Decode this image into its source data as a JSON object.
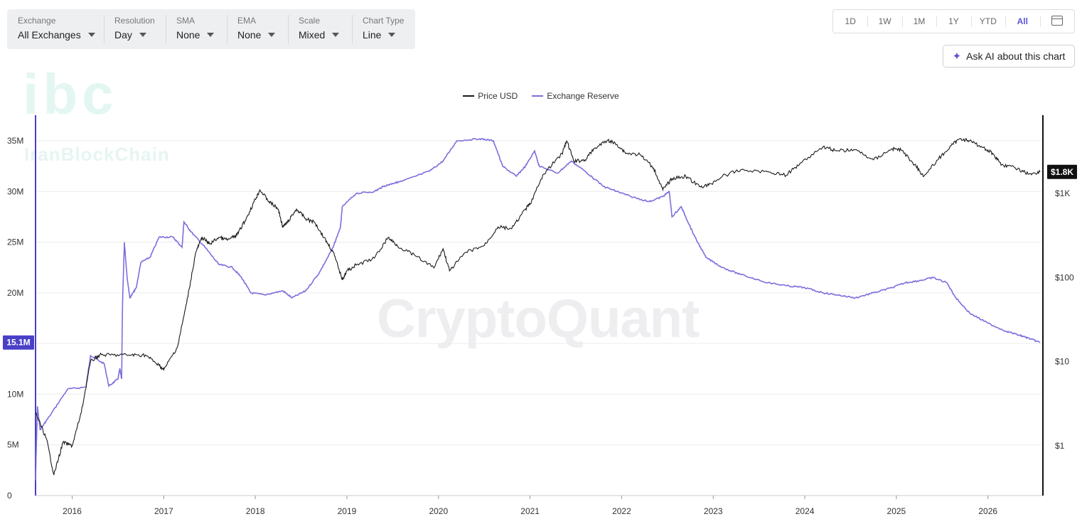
{
  "toolbar": {
    "exchange": {
      "label": "Exchange",
      "value": "All Exchanges"
    },
    "resolution": {
      "label": "Resolution",
      "value": "Day"
    },
    "sma": {
      "label": "SMA",
      "value": "None"
    },
    "ema": {
      "label": "EMA",
      "value": "None"
    },
    "scale": {
      "label": "Scale",
      "value": "Mixed"
    },
    "chart_type": {
      "label": "Chart Type",
      "value": "Line"
    }
  },
  "ranges": [
    "1D",
    "1W",
    "1M",
    "1Y",
    "YTD",
    "All"
  ],
  "active_range": "All",
  "ask_ai": "Ask AI about this chart",
  "watermarks": {
    "logo": "ibc",
    "logo_text": "IranBlockChain",
    "brand": "CryptoQuant"
  },
  "colors": {
    "price": "#1a1a1a",
    "reserve": "#7b6fdc",
    "badge_left": "#4a3fc7",
    "badge_right": "#111111",
    "accent": "#5b54d6"
  },
  "chart_data": {
    "type": "line",
    "legend": [
      "Price USD",
      "Exchange Reserve"
    ],
    "legend_position": "top-center",
    "x_ticks": [
      "2016",
      "2017",
      "2018",
      "2019",
      "2020",
      "2021",
      "2022",
      "2023",
      "2024",
      "2025",
      "2026"
    ],
    "x_range": [
      2015.6,
      2026.6
    ],
    "y_left": {
      "label": "",
      "ticks": [
        "0",
        "5M",
        "10M",
        "15M",
        "20M",
        "25M",
        "30M",
        "35M"
      ],
      "range": [
        0,
        35000000
      ],
      "current_label": "15.1M"
    },
    "y_right": {
      "label": "",
      "scale": "log",
      "ticks": [
        "$1",
        "$10",
        "$100",
        "$1K"
      ],
      "tick_values": [
        1,
        10,
        100,
        1000
      ],
      "current_label": "$1.8K"
    },
    "gridlines": "horizontal",
    "series": [
      {
        "name": "Exchange Reserve",
        "axis": "left",
        "points": [
          [
            2015.6,
            1500000.0
          ],
          [
            2015.62,
            8800000.0
          ],
          [
            2015.65,
            6500000.0
          ],
          [
            2015.75,
            7800000.0
          ],
          [
            2015.95,
            10500000.0
          ],
          [
            2016.15,
            10700000.0
          ],
          [
            2016.2,
            13800000.0
          ],
          [
            2016.35,
            13000000.0
          ],
          [
            2016.4,
            10800000.0
          ],
          [
            2016.5,
            11500000.0
          ],
          [
            2016.52,
            12500000.0
          ],
          [
            2016.54,
            11500000.0
          ],
          [
            2016.55,
            19000000.0
          ],
          [
            2016.57,
            25000000.0
          ],
          [
            2016.6,
            21500000.0
          ],
          [
            2016.63,
            19500000.0
          ],
          [
            2016.7,
            20500000.0
          ],
          [
            2016.75,
            23000000.0
          ],
          [
            2016.85,
            23500000.0
          ],
          [
            2016.95,
            25500000.0
          ],
          [
            2017.1,
            25500000.0
          ],
          [
            2017.2,
            24500000.0
          ],
          [
            2017.22,
            27000000.0
          ],
          [
            2017.3,
            26000000.0
          ],
          [
            2017.45,
            24500000.0
          ],
          [
            2017.6,
            22800000.0
          ],
          [
            2017.75,
            22500000.0
          ],
          [
            2017.85,
            21500000.0
          ],
          [
            2017.95,
            20000000.0
          ],
          [
            2018.1,
            19800000.0
          ],
          [
            2018.3,
            20200000.0
          ],
          [
            2018.4,
            19500000.0
          ],
          [
            2018.55,
            20200000.0
          ],
          [
            2018.7,
            22000000.0
          ],
          [
            2018.85,
            24500000.0
          ],
          [
            2018.93,
            26500000.0
          ],
          [
            2018.95,
            28500000.0
          ],
          [
            2019.1,
            29800000.0
          ],
          [
            2019.3,
            30000000.0
          ],
          [
            2019.4,
            30500000.0
          ],
          [
            2019.5,
            30800000.0
          ],
          [
            2019.6,
            31000000.0
          ],
          [
            2019.9,
            32000000.0
          ],
          [
            2020.05,
            33000000.0
          ],
          [
            2020.2,
            35000000.0
          ],
          [
            2020.45,
            35200000.0
          ],
          [
            2020.6,
            35000000.0
          ],
          [
            2020.7,
            32500000.0
          ],
          [
            2020.85,
            31500000.0
          ],
          [
            2020.95,
            32500000.0
          ],
          [
            2021.05,
            34000000.0
          ],
          [
            2021.1,
            32500000.0
          ],
          [
            2021.3,
            31800000.0
          ],
          [
            2021.45,
            33000000.0
          ],
          [
            2021.6,
            32000000.0
          ],
          [
            2021.8,
            30500000.0
          ],
          [
            2021.95,
            30000000.0
          ],
          [
            2022.1,
            29500000.0
          ],
          [
            2022.3,
            29000000.0
          ],
          [
            2022.45,
            29500000.0
          ],
          [
            2022.52,
            30000000.0
          ],
          [
            2022.55,
            27500000.0
          ],
          [
            2022.65,
            28500000.0
          ],
          [
            2022.7,
            27500000.0
          ],
          [
            2022.8,
            25500000.0
          ],
          [
            2022.92,
            23500000.0
          ],
          [
            2023.1,
            22500000.0
          ],
          [
            2023.3,
            21800000.0
          ],
          [
            2023.6,
            21000000.0
          ],
          [
            2023.8,
            20700000.0
          ],
          [
            2024.0,
            20500000.0
          ],
          [
            2024.2,
            20000000.0
          ],
          [
            2024.35,
            19800000.0
          ],
          [
            2024.55,
            19500000.0
          ],
          [
            2024.75,
            20000000.0
          ],
          [
            2024.95,
            20500000.0
          ],
          [
            2025.1,
            21000000.0
          ],
          [
            2025.25,
            21200000.0
          ],
          [
            2025.4,
            21500000.0
          ],
          [
            2025.55,
            21000000.0
          ],
          [
            2025.65,
            19500000.0
          ],
          [
            2025.8,
            18000000.0
          ],
          [
            2026.0,
            17000000.0
          ],
          [
            2026.2,
            16200000.0
          ],
          [
            2026.35,
            15800000.0
          ],
          [
            2026.45,
            15500000.0
          ],
          [
            2026.57,
            15100000.0
          ]
        ]
      },
      {
        "name": "Price USD",
        "axis": "right",
        "points": [
          [
            2015.6,
            2.5
          ],
          [
            2015.72,
            1.2
          ],
          [
            2015.8,
            0.45
          ],
          [
            2015.9,
            1.1
          ],
          [
            2016.0,
            1.0
          ],
          [
            2016.1,
            2.5
          ],
          [
            2016.2,
            10
          ],
          [
            2016.3,
            12
          ],
          [
            2016.45,
            12
          ],
          [
            2016.65,
            12
          ],
          [
            2016.8,
            12
          ],
          [
            2016.95,
            9
          ],
          [
            2017.0,
            8
          ],
          [
            2017.15,
            15
          ],
          [
            2017.25,
            50
          ],
          [
            2017.35,
            200
          ],
          [
            2017.42,
            300
          ],
          [
            2017.5,
            250
          ],
          [
            2017.6,
            300
          ],
          [
            2017.7,
            280
          ],
          [
            2017.8,
            320
          ],
          [
            2017.9,
            500
          ],
          [
            2018.0,
            850
          ],
          [
            2018.05,
            1100
          ],
          [
            2018.15,
            800
          ],
          [
            2018.25,
            650
          ],
          [
            2018.3,
            400
          ],
          [
            2018.35,
            450
          ],
          [
            2018.45,
            650
          ],
          [
            2018.55,
            500
          ],
          [
            2018.65,
            450
          ],
          [
            2018.75,
            300
          ],
          [
            2018.85,
            200
          ],
          [
            2018.95,
            95
          ],
          [
            2019.0,
            120
          ],
          [
            2019.1,
            140
          ],
          [
            2019.3,
            170
          ],
          [
            2019.45,
            300
          ],
          [
            2019.55,
            240
          ],
          [
            2019.75,
            180
          ],
          [
            2019.95,
            130
          ],
          [
            2020.05,
            220
          ],
          [
            2020.12,
            120
          ],
          [
            2020.3,
            200
          ],
          [
            2020.5,
            240
          ],
          [
            2020.65,
            400
          ],
          [
            2020.8,
            380
          ],
          [
            2020.95,
            650
          ],
          [
            2021.0,
            750
          ],
          [
            2021.15,
            1700
          ],
          [
            2021.35,
            3000
          ],
          [
            2021.4,
            4200
          ],
          [
            2021.48,
            2400
          ],
          [
            2021.6,
            2500
          ],
          [
            2021.7,
            3400
          ],
          [
            2021.85,
            4300
          ],
          [
            2021.95,
            3800
          ],
          [
            2022.05,
            3000
          ],
          [
            2022.2,
            2900
          ],
          [
            2022.35,
            2000
          ],
          [
            2022.45,
            1100
          ],
          [
            2022.55,
            1500
          ],
          [
            2022.7,
            1600
          ],
          [
            2022.85,
            1200
          ],
          [
            2022.95,
            1250
          ],
          [
            2023.1,
            1600
          ],
          [
            2023.3,
            1900
          ],
          [
            2023.6,
            1800
          ],
          [
            2023.8,
            1650
          ],
          [
            2023.95,
            2300
          ],
          [
            2024.2,
            3600
          ],
          [
            2024.35,
            3200
          ],
          [
            2024.55,
            3300
          ],
          [
            2024.75,
            2500
          ],
          [
            2024.95,
            3400
          ],
          [
            2025.05,
            3300
          ],
          [
            2025.2,
            2200
          ],
          [
            2025.3,
            1600
          ],
          [
            2025.45,
            2500
          ],
          [
            2025.6,
            3700
          ],
          [
            2025.7,
            4500
          ],
          [
            2025.8,
            4200
          ],
          [
            2025.95,
            3500
          ],
          [
            2026.05,
            3000
          ],
          [
            2026.15,
            2200
          ],
          [
            2026.3,
            2000
          ],
          [
            2026.45,
            1700
          ],
          [
            2026.57,
            1800
          ]
        ]
      }
    ]
  }
}
